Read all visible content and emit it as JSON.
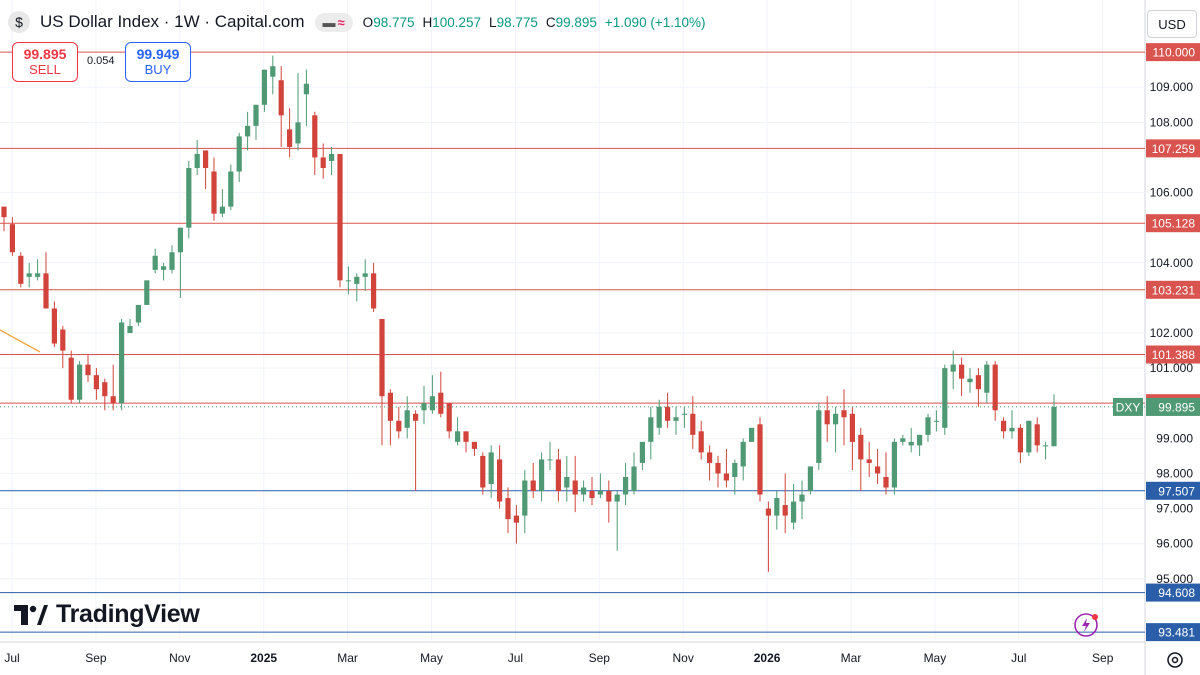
{
  "header": {
    "symbol_icon": "dollar-sign-icon",
    "title": "US Dollar Index · 1W · Capital.com",
    "ohlc": {
      "o_label": "O",
      "o": "98.775",
      "h_label": "H",
      "h": "100.257",
      "l_label": "L",
      "l": "98.775",
      "c_label": "C",
      "c": "99.895",
      "change": "+1.090 (+1.10%)"
    }
  },
  "trade": {
    "sell_price": "99.895",
    "sell_label": "SELL",
    "spread": "0.054",
    "buy_price": "99.949",
    "buy_label": "BUY"
  },
  "currency_button": "USD",
  "branding": {
    "logo_text": "TradingView"
  },
  "colors": {
    "up": "#4f9a74",
    "down": "#d2443b",
    "hline": "#d9534f",
    "support": "#2a5ea8",
    "price_tag": "#4f9a74"
  },
  "chart_data": {
    "type": "candlestick",
    "timeframe": "1W",
    "x_ticks": [
      "Jul",
      "Sep",
      "Nov",
      "2025",
      "Mar",
      "May",
      "Jul",
      "Sep",
      "Nov",
      "2026",
      "Mar",
      "May",
      "Jul",
      "Sep"
    ],
    "y_ticks": [
      "95.000",
      "96.000",
      "97.000",
      "98.000",
      "99.000",
      "100.000",
      "101.000",
      "102.000",
      "104.000",
      "106.000",
      "108.000",
      "109.000"
    ],
    "ylim": [
      93.2,
      111.2
    ],
    "hlines": [
      {
        "value": "110.000",
        "style": "resistance"
      },
      {
        "value": "107.259",
        "style": "resistance"
      },
      {
        "value": "105.128",
        "style": "resistance"
      },
      {
        "value": "103.231",
        "style": "resistance"
      },
      {
        "value": "101.388",
        "style": "resistance"
      },
      {
        "value": "100.002",
        "style": "resistance"
      },
      {
        "value": "97.507",
        "style": "support"
      },
      {
        "value": "94.608",
        "style": "support"
      },
      {
        "value": "93.481",
        "style": "support"
      }
    ],
    "last_price_label": "DXY",
    "last_price": "99.895",
    "candles": [
      [
        105.6,
        105.3,
        105.6,
        104.9
      ],
      [
        105.1,
        104.3,
        105.3,
        104.2
      ],
      [
        104.2,
        103.4,
        104.3,
        103.3
      ],
      [
        103.6,
        103.7,
        104.0,
        103.3
      ],
      [
        103.6,
        103.7,
        104.1,
        103.5
      ],
      [
        103.7,
        102.7,
        104.3,
        102.7
      ],
      [
        102.7,
        101.7,
        102.9,
        101.6
      ],
      [
        102.1,
        101.5,
        102.2,
        101.0
      ],
      [
        101.3,
        100.1,
        101.5,
        100.0
      ],
      [
        100.1,
        101.1,
        101.2,
        100.0
      ],
      [
        101.1,
        100.8,
        101.4,
        100.6
      ],
      [
        100.8,
        100.4,
        101.0,
        100.1
      ],
      [
        100.6,
        100.2,
        100.7,
        99.8
      ],
      [
        100.2,
        100.0,
        101.1,
        99.8
      ],
      [
        100.0,
        102.3,
        102.4,
        99.8
      ],
      [
        102.0,
        102.2,
        102.4,
        102.0
      ],
      [
        102.3,
        102.8,
        102.8,
        102.2
      ],
      [
        102.8,
        103.5,
        103.5,
        103.1
      ],
      [
        103.8,
        104.2,
        104.4,
        103.7
      ],
      [
        103.8,
        103.9,
        104.0,
        103.5
      ],
      [
        103.8,
        104.3,
        104.5,
        103.7
      ],
      [
        104.3,
        105.0,
        104.5,
        103.0
      ],
      [
        105.0,
        106.7,
        106.9,
        104.7
      ],
      [
        106.7,
        107.1,
        107.5,
        106.5
      ],
      [
        107.2,
        106.7,
        107.1,
        106.1
      ],
      [
        106.6,
        105.4,
        107.0,
        105.2
      ],
      [
        105.4,
        105.6,
        106.1,
        105.3
      ],
      [
        105.6,
        106.6,
        106.8,
        105.5
      ],
      [
        106.6,
        107.6,
        107.7,
        106.3
      ],
      [
        107.6,
        107.9,
        108.3,
        107.2
      ],
      [
        107.9,
        108.5,
        108.5,
        107.5
      ],
      [
        108.5,
        109.5,
        109.5,
        108.3
      ],
      [
        109.3,
        109.6,
        109.9,
        108.8
      ],
      [
        109.2,
        108.2,
        109.6,
        107.3
      ],
      [
        107.8,
        107.3,
        108.4,
        107.0
      ],
      [
        107.4,
        108.0,
        109.4,
        107.2
      ],
      [
        108.8,
        109.1,
        109.5,
        107.9
      ],
      [
        108.2,
        107.0,
        108.3,
        106.5
      ],
      [
        107.0,
        106.7,
        107.4,
        106.4
      ],
      [
        106.9,
        107.1,
        107.3,
        106.5
      ],
      [
        107.1,
        103.5,
        107.1,
        103.3
      ],
      [
        103.5,
        103.5,
        103.9,
        103.1
      ],
      [
        103.4,
        103.6,
        103.7,
        102.9
      ],
      [
        103.6,
        103.7,
        104.1,
        103.2
      ],
      [
        103.7,
        102.7,
        104.0,
        102.6
      ],
      [
        102.4,
        100.2,
        102.4,
        98.8
      ],
      [
        100.3,
        99.5,
        100.4,
        98.8
      ],
      [
        99.5,
        99.2,
        99.9,
        99.0
      ],
      [
        99.3,
        99.8,
        100.2,
        99.0
      ],
      [
        99.7,
        99.5,
        99.8,
        97.5
      ],
      [
        99.8,
        100.0,
        100.5,
        99.4
      ],
      [
        99.8,
        100.2,
        100.8,
        99.7
      ],
      [
        100.3,
        99.7,
        100.9,
        99.6
      ],
      [
        100.0,
        99.2,
        99.9,
        99.0
      ],
      [
        98.9,
        99.2,
        99.6,
        98.8
      ],
      [
        99.2,
        98.9,
        99.2,
        98.6
      ],
      [
        98.9,
        98.7,
        98.6,
        98.5
      ],
      [
        98.5,
        97.6,
        98.6,
        97.4
      ],
      [
        97.7,
        98.6,
        98.8,
        97.3
      ],
      [
        98.4,
        97.2,
        98.8,
        97.0
      ],
      [
        97.3,
        96.7,
        97.6,
        96.3
      ],
      [
        96.8,
        96.6,
        97.1,
        96.0
      ],
      [
        96.8,
        97.8,
        98.1,
        96.3
      ],
      [
        97.8,
        97.5,
        98.3,
        97.3
      ],
      [
        97.5,
        98.4,
        98.6,
        97.2
      ],
      [
        98.4,
        98.4,
        98.9,
        98.1
      ],
      [
        98.4,
        97.5,
        98.7,
        97.2
      ],
      [
        97.6,
        97.9,
        98.5,
        97.2
      ],
      [
        97.8,
        97.4,
        98.5,
        96.9
      ],
      [
        97.4,
        97.6,
        97.8,
        97.2
      ],
      [
        97.5,
        97.3,
        97.9,
        97.1
      ],
      [
        97.4,
        97.5,
        98.0,
        97.3
      ],
      [
        97.5,
        97.2,
        97.8,
        96.6
      ],
      [
        97.2,
        97.4,
        97.5,
        95.8
      ],
      [
        97.4,
        97.9,
        98.3,
        97.1
      ],
      [
        97.5,
        98.2,
        98.6,
        97.4
      ],
      [
        98.3,
        98.9,
        98.9,
        98.1
      ],
      [
        98.9,
        99.6,
        99.9,
        98.4
      ],
      [
        99.3,
        99.9,
        100.1,
        99.1
      ],
      [
        99.9,
        99.5,
        100.3,
        99.3
      ],
      [
        99.5,
        99.6,
        99.9,
        99.1
      ],
      [
        99.7,
        99.7,
        99.9,
        99.3
      ],
      [
        99.7,
        99.1,
        100.2,
        98.7
      ],
      [
        99.2,
        98.6,
        99.5,
        98.4
      ],
      [
        98.6,
        98.3,
        98.8,
        97.8
      ],
      [
        98.3,
        98.0,
        98.5,
        97.6
      ],
      [
        98.0,
        97.8,
        98.7,
        97.6
      ],
      [
        97.9,
        98.3,
        98.4,
        97.4
      ],
      [
        98.2,
        98.9,
        99.0,
        97.8
      ],
      [
        98.9,
        99.3,
        99.2,
        98.9
      ],
      [
        99.4,
        97.4,
        99.6,
        97.2
      ],
      [
        97.0,
        96.8,
        97.2,
        95.2
      ],
      [
        96.8,
        97.3,
        97.5,
        96.4
      ],
      [
        97.1,
        96.8,
        98.0,
        96.3
      ],
      [
        96.6,
        97.2,
        97.7,
        96.4
      ],
      [
        97.2,
        97.4,
        97.8,
        96.7
      ],
      [
        97.5,
        98.2,
        98.2,
        97.4
      ],
      [
        98.3,
        99.8,
        100.0,
        98.1
      ],
      [
        99.8,
        99.4,
        100.2,
        98.9
      ],
      [
        99.4,
        99.7,
        99.9,
        98.6
      ],
      [
        99.8,
        99.6,
        100.4,
        98.8
      ],
      [
        99.7,
        98.9,
        99.9,
        98.1
      ],
      [
        99.1,
        98.4,
        99.3,
        97.5
      ],
      [
        98.4,
        98.3,
        98.9,
        97.9
      ],
      [
        98.2,
        98.0,
        98.7,
        97.7
      ],
      [
        97.9,
        97.6,
        98.6,
        97.4
      ],
      [
        97.6,
        98.9,
        99.0,
        97.4
      ],
      [
        98.9,
        99.0,
        99.1,
        98.8
      ],
      [
        98.8,
        98.9,
        99.3,
        98.6
      ],
      [
        98.8,
        99.1,
        99.1,
        98.5
      ],
      [
        99.1,
        99.6,
        99.7,
        98.9
      ],
      [
        99.5,
        99.5,
        99.8,
        99.2
      ],
      [
        99.3,
        101.0,
        101.1,
        99.1
      ],
      [
        100.9,
        101.1,
        101.5,
        100.4
      ],
      [
        101.1,
        100.7,
        101.3,
        100.2
      ],
      [
        100.6,
        100.7,
        101.0,
        100.3
      ],
      [
        100.8,
        100.4,
        101.0,
        99.9
      ],
      [
        100.3,
        101.1,
        101.2,
        100.0
      ],
      [
        101.1,
        99.8,
        101.2,
        99.5
      ],
      [
        99.5,
        99.2,
        99.6,
        99.0
      ],
      [
        99.2,
        99.3,
        99.8,
        99.0
      ],
      [
        99.3,
        98.6,
        99.4,
        98.3
      ],
      [
        98.6,
        99.5,
        99.4,
        98.5
      ],
      [
        99.4,
        98.8,
        99.6,
        98.6
      ],
      [
        98.8,
        98.8,
        98.9,
        98.4
      ],
      [
        98.775,
        99.895,
        100.257,
        98.775
      ]
    ]
  }
}
